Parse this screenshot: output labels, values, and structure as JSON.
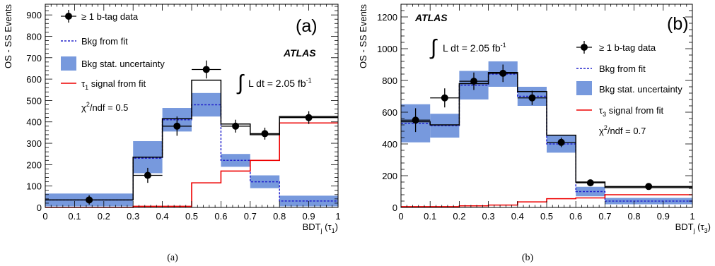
{
  "chart_data": [
    {
      "type": "bar",
      "panel_tag": "(a)",
      "caption": "(a)",
      "experiment": "ATLAS",
      "ylabel": "OS - SS Events",
      "xlabel_main": "BDT",
      "xlabel_sub": "j",
      "xlabel_tail": " (τ",
      "xlabel_tail_sub": "1",
      "xlabel_end": ")",
      "xlim": [
        0,
        1
      ],
      "ylim": [
        0,
        950
      ],
      "xticks": [
        0,
        0.1,
        0.2,
        0.3,
        0.4,
        0.5,
        0.6,
        0.7,
        0.8,
        0.9,
        1
      ],
      "xtick_labels": [
        "0",
        "0.1",
        "0.2",
        "0.3",
        "0.4",
        "0.5",
        "0.6",
        "0.7",
        "0.8",
        "0.9",
        "1"
      ],
      "yticks": [
        0,
        100,
        200,
        300,
        400,
        500,
        600,
        700,
        800,
        900
      ],
      "ytick_labels": [
        "0",
        "100",
        "200",
        "300",
        "400",
        "500",
        "600",
        "700",
        "800",
        "900"
      ],
      "bin_edges": [
        0,
        0.3,
        0.4,
        0.5,
        0.6,
        0.7,
        0.8,
        1.0
      ],
      "legend": {
        "placement": "top-left",
        "data": "≥ 1 b-tag data",
        "bkg": "Bkg from fit",
        "unc": "Bkg stat. uncertainty",
        "sig_prefix": "τ",
        "sig_sub": "1",
        "sig_suffix": " signal from fit",
        "chi_prefix": "χ",
        "chi_sup": "2",
        "chi_suffix": "/ndf = 0.5"
      },
      "lumi": {
        "integral": "∫",
        "text": "L dt = 2.05 fb",
        "sup": "-1"
      },
      "series": [
        {
          "name": "≥ 1 b-tag data",
          "kind": "points",
          "x": [
            0.15,
            0.35,
            0.45,
            0.55,
            0.65,
            0.75,
            0.9
          ],
          "y": [
            35,
            150,
            380,
            645,
            380,
            345,
            420
          ],
          "yerr": [
            22,
            35,
            45,
            42,
            30,
            28,
            30
          ]
        },
        {
          "name": "Bkg from fit",
          "kind": "step",
          "values": [
            35,
            230,
            410,
            480,
            220,
            120,
            30
          ]
        },
        {
          "name": "Bkg stat. uncertainty",
          "kind": "band",
          "lower": [
            5,
            160,
            355,
            425,
            190,
            90,
            5
          ],
          "upper": [
            65,
            310,
            465,
            535,
            250,
            150,
            55
          ]
        },
        {
          "name": "τ1 signal from fit",
          "kind": "step",
          "values": [
            0,
            5,
            5,
            115,
            170,
            220,
            395
          ]
        },
        {
          "name": "Total fit",
          "kind": "step",
          "values": [
            35,
            235,
            415,
            595,
            390,
            340,
            425
          ]
        }
      ],
      "colors": {
        "data": "#000000",
        "bkg": "#2222cc",
        "band": "#7799dd",
        "signal": "#ee0000",
        "total": "#000000"
      }
    },
    {
      "type": "bar",
      "panel_tag": "(b)",
      "caption": "(b)",
      "experiment": "ATLAS",
      "ylabel": "OS - SS Events",
      "xlabel_main": "BDT",
      "xlabel_sub": "j",
      "xlabel_tail": " (τ",
      "xlabel_tail_sub": "3",
      "xlabel_end": ")",
      "xlim": [
        0,
        1
      ],
      "ylim": [
        0,
        1280
      ],
      "xticks": [
        0,
        0.1,
        0.2,
        0.3,
        0.4,
        0.5,
        0.6,
        0.7,
        0.8,
        0.9,
        1
      ],
      "xtick_labels": [
        "0",
        "0.1",
        "0.2",
        "0.3",
        "0.4",
        "0.5",
        "0.6",
        "0.7",
        "0.8",
        "0.9",
        "1"
      ],
      "yticks": [
        0,
        200,
        400,
        600,
        800,
        1000,
        1200
      ],
      "ytick_labels": [
        "0",
        "200",
        "400",
        "600",
        "800",
        "1000",
        "1200"
      ],
      "bin_edges": [
        0,
        0.1,
        0.2,
        0.3,
        0.4,
        0.5,
        0.6,
        0.7,
        1.0
      ],
      "legend": {
        "placement": "right",
        "data": "≥ 1 b-tag data",
        "bkg": "Bkg from fit",
        "unc": "Bkg stat. uncertainty",
        "sig_prefix": "τ",
        "sig_sub": "3",
        "sig_suffix": " signal from fit",
        "chi_prefix": "χ",
        "chi_sup": "2",
        "chi_suffix": "/ndf = 0.7"
      },
      "lumi": {
        "integral": "∫",
        "text": "L dt = 2.05 fb",
        "sup": "-1"
      },
      "series": [
        {
          "name": "≥ 1 b-tag data",
          "kind": "points",
          "x": [
            0.05,
            0.15,
            0.25,
            0.35,
            0.45,
            0.55,
            0.65,
            0.85
          ],
          "y": [
            550,
            690,
            795,
            845,
            690,
            410,
            155,
            132
          ],
          "yerr": [
            75,
            60,
            55,
            55,
            45,
            30,
            15,
            10
          ]
        },
        {
          "name": "Bkg from fit",
          "kind": "step",
          "values": [
            530,
            515,
            770,
            840,
            700,
            400,
            100,
            40
          ]
        },
        {
          "name": "Bkg stat. uncertainty",
          "kind": "band",
          "lower": [
            410,
            440,
            680,
            760,
            640,
            345,
            70,
            20
          ],
          "upper": [
            650,
            590,
            860,
            920,
            760,
            455,
            130,
            60
          ]
        },
        {
          "name": "τ3 signal from fit",
          "kind": "step",
          "values": [
            5,
            5,
            10,
            15,
            35,
            55,
            60,
            80
          ]
        },
        {
          "name": "Total fit",
          "kind": "step",
          "values": [
            540,
            520,
            780,
            850,
            730,
            455,
            160,
            125
          ]
        }
      ],
      "colors": {
        "data": "#000000",
        "bkg": "#2222cc",
        "band": "#7799dd",
        "signal": "#ee0000",
        "total": "#000000"
      }
    }
  ]
}
